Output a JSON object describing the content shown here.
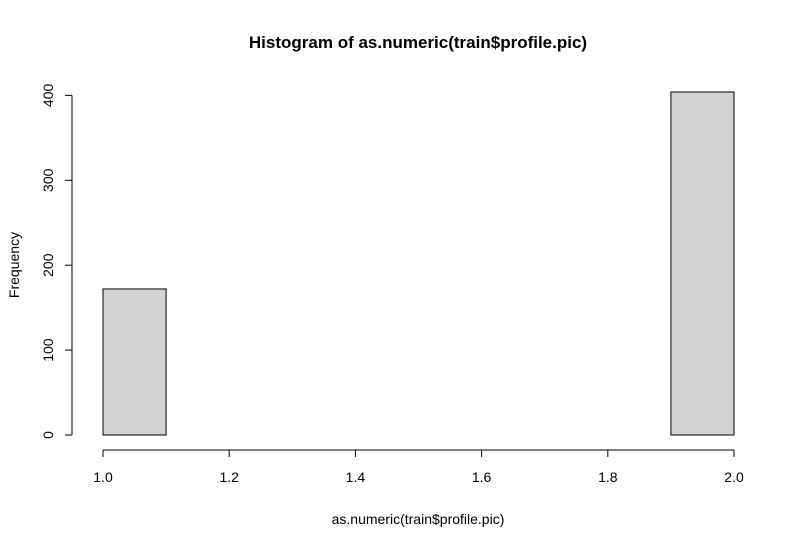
{
  "chart_data": {
    "type": "bar",
    "title": "Histogram of as.numeric(train$profile.pic)",
    "xlabel": "as.numeric(train$profile.pic)",
    "ylabel": "Frequency",
    "bins": [
      {
        "from": 1.0,
        "to": 1.1,
        "count": 172
      },
      {
        "from": 1.1,
        "to": 1.2,
        "count": 0
      },
      {
        "from": 1.2,
        "to": 1.3,
        "count": 0
      },
      {
        "from": 1.3,
        "to": 1.4,
        "count": 0
      },
      {
        "from": 1.4,
        "to": 1.5,
        "count": 0
      },
      {
        "from": 1.5,
        "to": 1.6,
        "count": 0
      },
      {
        "from": 1.6,
        "to": 1.7,
        "count": 0
      },
      {
        "from": 1.7,
        "to": 1.8,
        "count": 0
      },
      {
        "from": 1.8,
        "to": 1.9,
        "count": 0
      },
      {
        "from": 1.9,
        "to": 2.0,
        "count": 404
      }
    ],
    "xlim": [
      1.0,
      2.0
    ],
    "ylim": [
      0,
      404
    ],
    "x_ticks": [
      1.0,
      1.2,
      1.4,
      1.6,
      1.8,
      2.0
    ],
    "x_tick_labels": [
      "1.0",
      "1.2",
      "1.4",
      "1.6",
      "1.8",
      "2.0"
    ],
    "y_ticks": [
      0,
      100,
      200,
      300,
      400
    ],
    "y_tick_labels": [
      "0",
      "100",
      "200",
      "300",
      "400"
    ],
    "grid": false,
    "bar_fill": "#d3d3d3",
    "bar_stroke": "#000000"
  }
}
